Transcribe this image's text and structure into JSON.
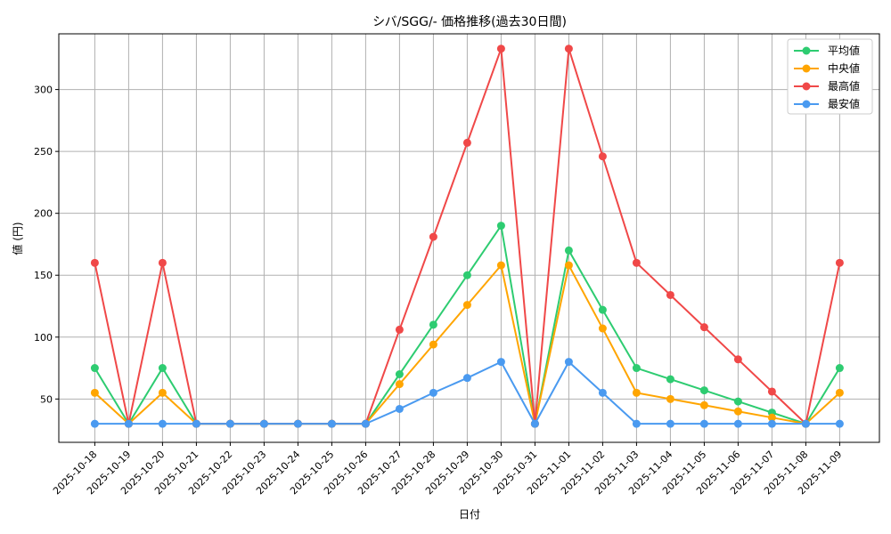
{
  "chart_data": {
    "type": "line",
    "title": "シバ/SGG/- 価格推移(過去30日間)",
    "xlabel": "日付",
    "ylabel": "値 (円)",
    "ylim": [
      15,
      345
    ],
    "yticks": [
      50,
      100,
      150,
      200,
      250,
      300
    ],
    "grid": true,
    "legend_position": "top-right",
    "categories": [
      "2025-10-18",
      "2025-10-19",
      "2025-10-20",
      "2025-10-21",
      "2025-10-22",
      "2025-10-23",
      "2025-10-24",
      "2025-10-25",
      "2025-10-26",
      "2025-10-27",
      "2025-10-28",
      "2025-10-29",
      "2025-10-30",
      "2025-10-31",
      "2025-11-01",
      "2025-11-02",
      "2025-11-03",
      "2025-11-04",
      "2025-11-05",
      "2025-11-06",
      "2025-11-07",
      "2025-11-08",
      "2025-11-09"
    ],
    "series": [
      {
        "name": "平均値",
        "color": "#2ecc71",
        "values": [
          75,
          30,
          75,
          30,
          30,
          30,
          30,
          30,
          30,
          70,
          110,
          150,
          190,
          30,
          170,
          122,
          75,
          66,
          57,
          48,
          39,
          30,
          75
        ]
      },
      {
        "name": "中央値",
        "color": "#ffa500",
        "values": [
          55,
          30,
          55,
          30,
          30,
          30,
          30,
          30,
          30,
          62,
          94,
          126,
          158,
          30,
          158,
          107,
          55,
          50,
          45,
          40,
          35,
          30,
          55
        ]
      },
      {
        "name": "最高値",
        "color": "#f04848",
        "values": [
          160,
          30,
          160,
          30,
          30,
          30,
          30,
          30,
          30,
          106,
          181,
          257,
          333,
          30,
          333,
          246,
          160,
          134,
          108,
          82,
          56,
          30,
          160
        ]
      },
      {
        "name": "最安値",
        "color": "#4a9af0",
        "values": [
          30,
          30,
          30,
          30,
          30,
          30,
          30,
          30,
          30,
          42,
          55,
          67,
          80,
          30,
          80,
          55,
          30,
          30,
          30,
          30,
          30,
          30,
          30
        ]
      }
    ]
  }
}
